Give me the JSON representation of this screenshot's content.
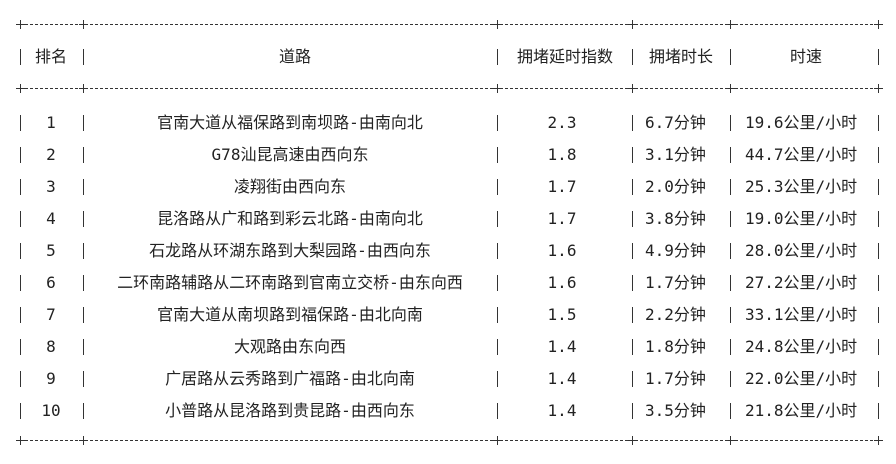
{
  "table": {
    "headers": [
      "排名",
      "道路",
      "拥堵延时指数",
      "拥堵时长",
      "时速"
    ],
    "rows": [
      [
        "1",
        "官南大道从福保路到南坝路-由南向北",
        "2.3",
        "6.7分钟",
        "19.6公里/小时"
      ],
      [
        "2",
        "G78汕昆高速由西向东",
        "1.8",
        "3.1分钟",
        "44.7公里/小时"
      ],
      [
        "3",
        "凌翔街由西向东",
        "1.7",
        "2.0分钟",
        "25.3公里/小时"
      ],
      [
        "4",
        "昆洛路从广和路到彩云北路-由南向北",
        "1.7",
        "3.8分钟",
        "19.0公里/小时"
      ],
      [
        "5",
        "石龙路从环湖东路到大梨园路-由西向东",
        "1.6",
        "4.9分钟",
        "28.0公里/小时"
      ],
      [
        "6",
        "二环南路辅路从二环南路到官南立交桥-由东向西",
        "1.6",
        "1.7分钟",
        "27.2公里/小时"
      ],
      [
        "7",
        "官南大道从南坝路到福保路-由北向南",
        "1.5",
        "2.2分钟",
        "33.1公里/小时"
      ],
      [
        "8",
        "大观路由东向西",
        "1.4",
        "1.8分钟",
        "24.8公里/小时"
      ],
      [
        "9",
        "广居路从云秀路到广福路-由北向南",
        "1.4",
        "1.7分钟",
        "22.0公里/小时"
      ],
      [
        "10",
        "小普路从昆洛路到贵昆路-由西向东",
        "1.4",
        "3.5分钟",
        "21.8公里/小时"
      ]
    ]
  }
}
